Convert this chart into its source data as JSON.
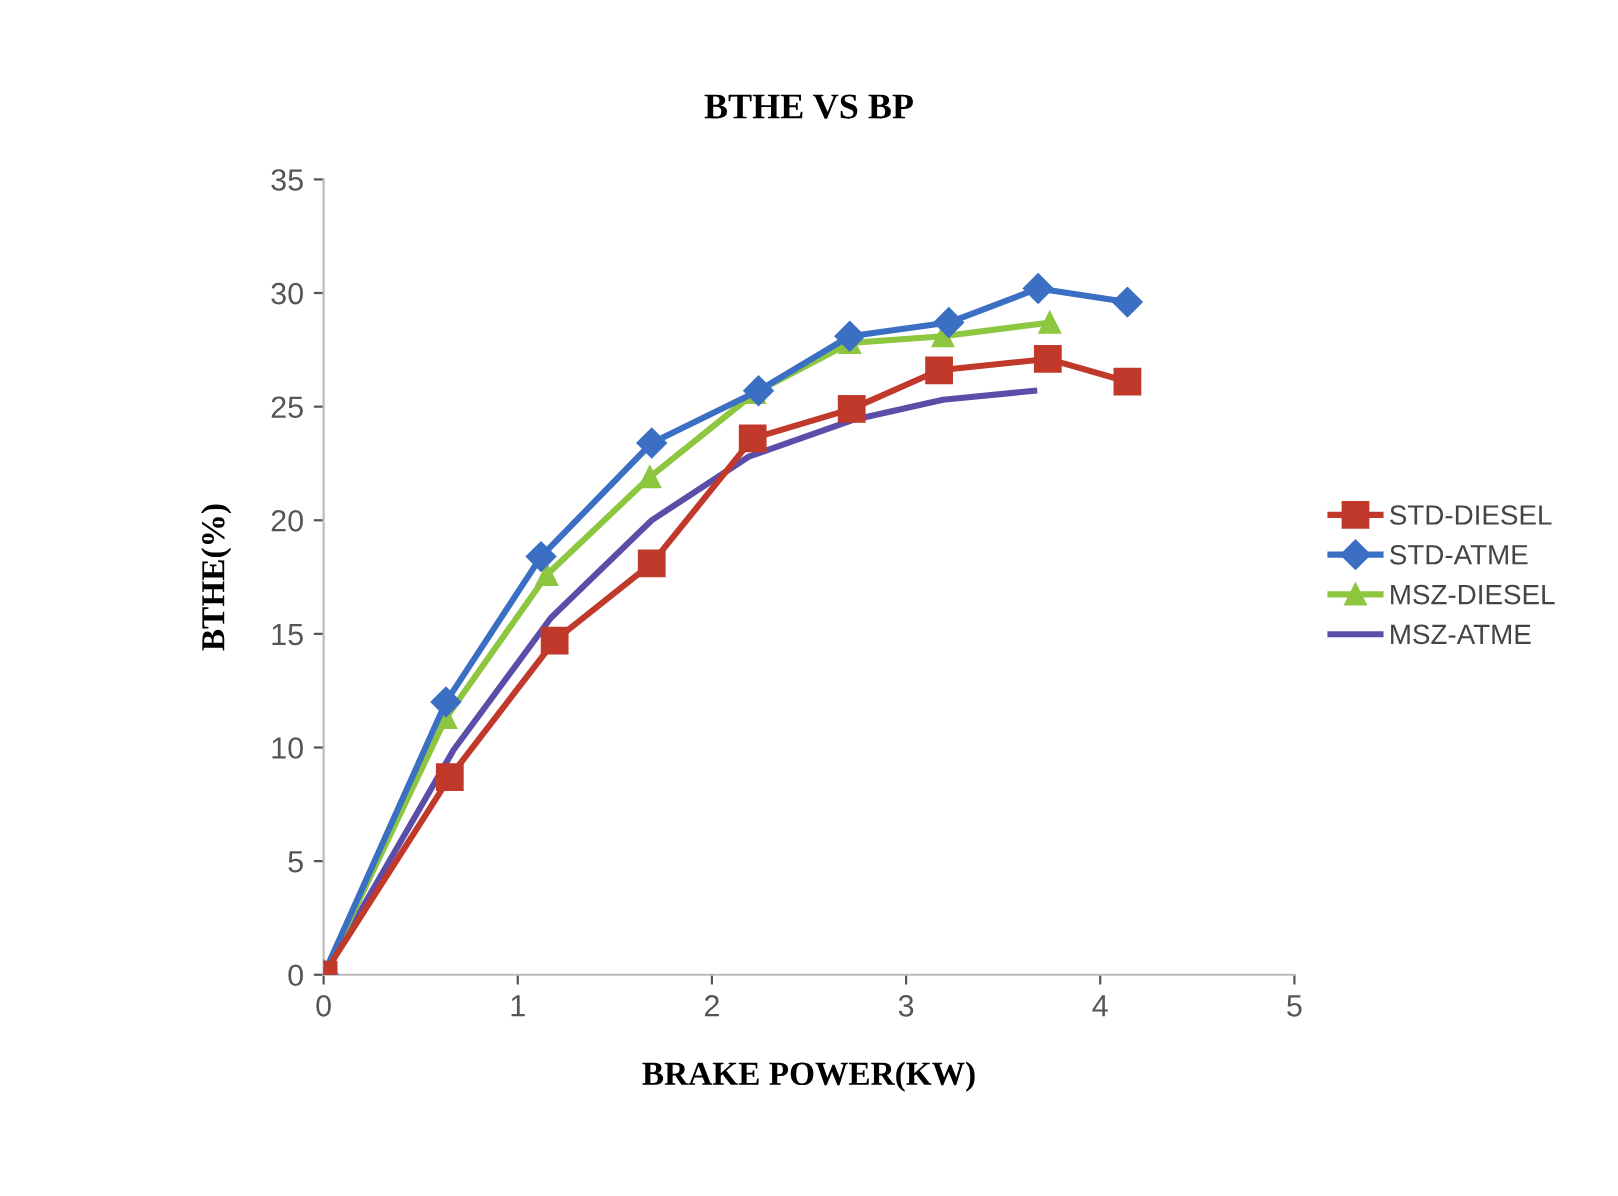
{
  "chart_data": {
    "type": "line",
    "title": "BTHE VS BP",
    "xlabel": "BRAKE POWER(KW)",
    "ylabel": "BTHE(%)",
    "xlim": [
      0,
      5
    ],
    "xticks": [
      0,
      1,
      2,
      3,
      4,
      5
    ],
    "ylim": [
      0,
      35
    ],
    "yticks": [
      0,
      5,
      10,
      15,
      20,
      25,
      30,
      35
    ],
    "grid": false,
    "legend": "right",
    "series": [
      {
        "name": "STD-DIESEL",
        "color": "#c0392b",
        "marker": "square",
        "x": [
          0,
          0.65,
          1.19,
          1.69,
          2.21,
          2.72,
          3.17,
          3.73,
          4.14
        ],
        "values": [
          0,
          8.7,
          14.7,
          18.1,
          23.6,
          24.9,
          26.6,
          27.1,
          26.1
        ]
      },
      {
        "name": "STD-ATME",
        "color": "#3a6fc4",
        "marker": "diamond",
        "x": [
          0,
          0.63,
          1.12,
          1.69,
          2.24,
          2.71,
          3.22,
          3.68,
          4.14
        ],
        "values": [
          0,
          12.0,
          18.4,
          23.4,
          25.7,
          28.1,
          28.7,
          30.2,
          29.6
        ]
      },
      {
        "name": "MSZ-DIESEL",
        "color": "#8dc63f",
        "marker": "triangle",
        "x": [
          0,
          0.63,
          1.15,
          1.68,
          2.22,
          2.71,
          3.19,
          3.74
        ],
        "values": [
          0,
          11.3,
          17.6,
          21.9,
          25.6,
          27.8,
          28.1,
          28.7
        ]
      },
      {
        "name": "MSZ-ATME",
        "color": "#5b4ea8",
        "marker": "none",
        "x": [
          0,
          0.67,
          1.17,
          1.69,
          2.19,
          2.72,
          3.19,
          3.66
        ],
        "values": [
          0,
          9.9,
          15.7,
          20.0,
          22.8,
          24.4,
          25.3,
          25.7
        ]
      }
    ]
  }
}
